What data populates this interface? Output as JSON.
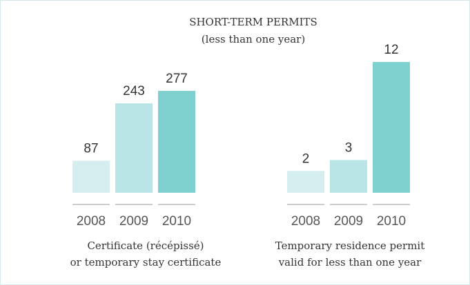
{
  "title": "SHORT-TERM PERMITS",
  "subtitle": "(less than one year)",
  "chart_data": [
    {
      "type": "bar",
      "categories": [
        "2008",
        "2009",
        "2010"
      ],
      "values": [
        87,
        243,
        277
      ],
      "colors": [
        "#d4eef0",
        "#b9e4e5",
        "#7fd1cf"
      ],
      "caption": [
        "Certificate (récépissé)",
        "or temporary stay certificate"
      ]
    },
    {
      "type": "bar",
      "categories": [
        "2008",
        "2009",
        "2010"
      ],
      "values": [
        2,
        3,
        12
      ],
      "colors": [
        "#d4eef0",
        "#b9e4e5",
        "#7fd1cf"
      ],
      "caption": [
        "Temporary residence permit",
        "valid for less than one year"
      ]
    }
  ]
}
